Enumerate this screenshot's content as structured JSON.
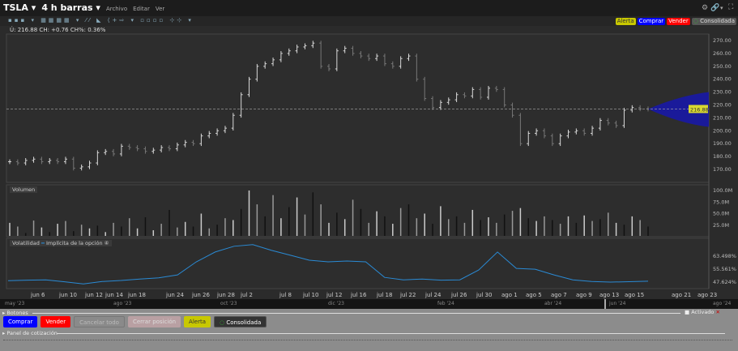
{
  "header": {
    "symbol": "TSLA",
    "period": "4 h barras",
    "menus": [
      "Archivo",
      "Editar",
      "Ver"
    ]
  },
  "quote_info": "Ú: 216.88 CH: +0.76 CH%: 0.36%",
  "chart_buttons": {
    "alert": "Alerta",
    "buy": "Comprar",
    "sell": "Vender",
    "consolidated": "Consolidada"
  },
  "colors": {
    "buy": "#0000ff",
    "sell": "#ff0000",
    "alert": "#c8c800",
    "cone": "#1a1a9a",
    "vol_line": "#2a8ad4",
    "last_price": "#d8d830"
  },
  "chart_data": [
    {
      "type": "ohlc",
      "title": "",
      "last_price": "216.88",
      "ylim": [
        165,
        275
      ],
      "y_ticks": [
        "270.00",
        "260.00",
        "250.00",
        "240.00",
        "230.00",
        "220.00",
        "210.00",
        "200.00",
        "190.00",
        "180.00",
        "170.00"
      ],
      "closes": [
        176,
        175,
        177,
        178,
        176,
        177,
        176,
        178,
        171,
        172,
        175,
        183,
        184,
        182,
        188,
        187,
        186,
        184,
        185,
        187,
        186,
        189,
        191,
        190,
        196,
        198,
        200,
        202,
        212,
        228,
        240,
        250,
        252,
        255,
        260,
        262,
        265,
        266,
        268,
        250,
        248,
        262,
        264,
        260,
        258,
        256,
        258,
        252,
        250,
        256,
        258,
        240,
        225,
        218,
        222,
        224,
        228,
        227,
        232,
        226,
        233,
        232,
        220,
        212,
        190,
        198,
        200,
        196,
        190,
        196,
        199,
        200,
        198,
        202,
        208,
        206,
        204,
        216,
        218,
        217,
        216.88
      ],
      "forecast_cone": {
        "center": 216.88,
        "upper": 230,
        "lower": 203
      }
    },
    {
      "type": "bar",
      "title": "Volumen",
      "ylim": [
        0,
        105
      ],
      "y_ticks": [
        "100.0M",
        "75.0M",
        "50.0M",
        "25.0M"
      ],
      "values": [
        30,
        22,
        8,
        35,
        20,
        10,
        28,
        34,
        12,
        26,
        18,
        24,
        10,
        30,
        22,
        40,
        18,
        42,
        14,
        28,
        58,
        20,
        32,
        22,
        50,
        18,
        26,
        40,
        36,
        60,
        100,
        70,
        44,
        90,
        40,
        64,
        85,
        48,
        96,
        70,
        30,
        52,
        38,
        80,
        60,
        30,
        55,
        44,
        28,
        62,
        70,
        40,
        50,
        28,
        66,
        38,
        44,
        30,
        58,
        36,
        42,
        30,
        48,
        56,
        62,
        40,
        34,
        44,
        36,
        28,
        44,
        30,
        46,
        34,
        38,
        52,
        30,
        26,
        44,
        36,
        22
      ]
    },
    {
      "type": "line",
      "title": "Volatilidad",
      "series": [
        {
          "name": "Implícita de la opción",
          "values": [
            48.5,
            48.8,
            49,
            47.8,
            46.5,
            48,
            48.6,
            49.5,
            50.2,
            52,
            60,
            66,
            69.5,
            70.5,
            67,
            64,
            61,
            60,
            60.5,
            60,
            50.5,
            49,
            49.5,
            48.8,
            49,
            55,
            66,
            56,
            55.5,
            52,
            49,
            48,
            47.6,
            47.9,
            48.2
          ]
        }
      ],
      "y_ticks": [
        "63.498%",
        "55.561%",
        "47.624%"
      ]
    }
  ],
  "x_ticks": [
    "jun 6",
    "jun 10",
    "jun 12",
    "jun 14",
    "jun 18",
    "jun 24",
    "jun 26",
    "jun 28",
    "jul 2",
    "jul 8",
    "jul 10",
    "jul 12",
    "jul 16",
    "jul 18",
    "jul 22",
    "jul 24",
    "jul 26",
    "jul 30",
    "ago 1",
    "ago 5",
    "ago 7",
    "ago 9",
    "ago 13",
    "ago 15",
    "ago 21",
    "ago 23"
  ],
  "timeline": [
    "may '23",
    "ago '23",
    "oct '23",
    "dic '23",
    "feb '24",
    "abr '24",
    "jun '24",
    "ago '24"
  ],
  "buttons_panel": {
    "title": "Botones",
    "activated": "Activado",
    "buy": "Comprar",
    "sell": "Vender",
    "cancel_all": "Cancelar todo",
    "close_position": "Cerrar posición",
    "alert": "Alerta",
    "consolidated": "Consolidada"
  },
  "quote_panel": {
    "title": "Panel de cotización"
  }
}
